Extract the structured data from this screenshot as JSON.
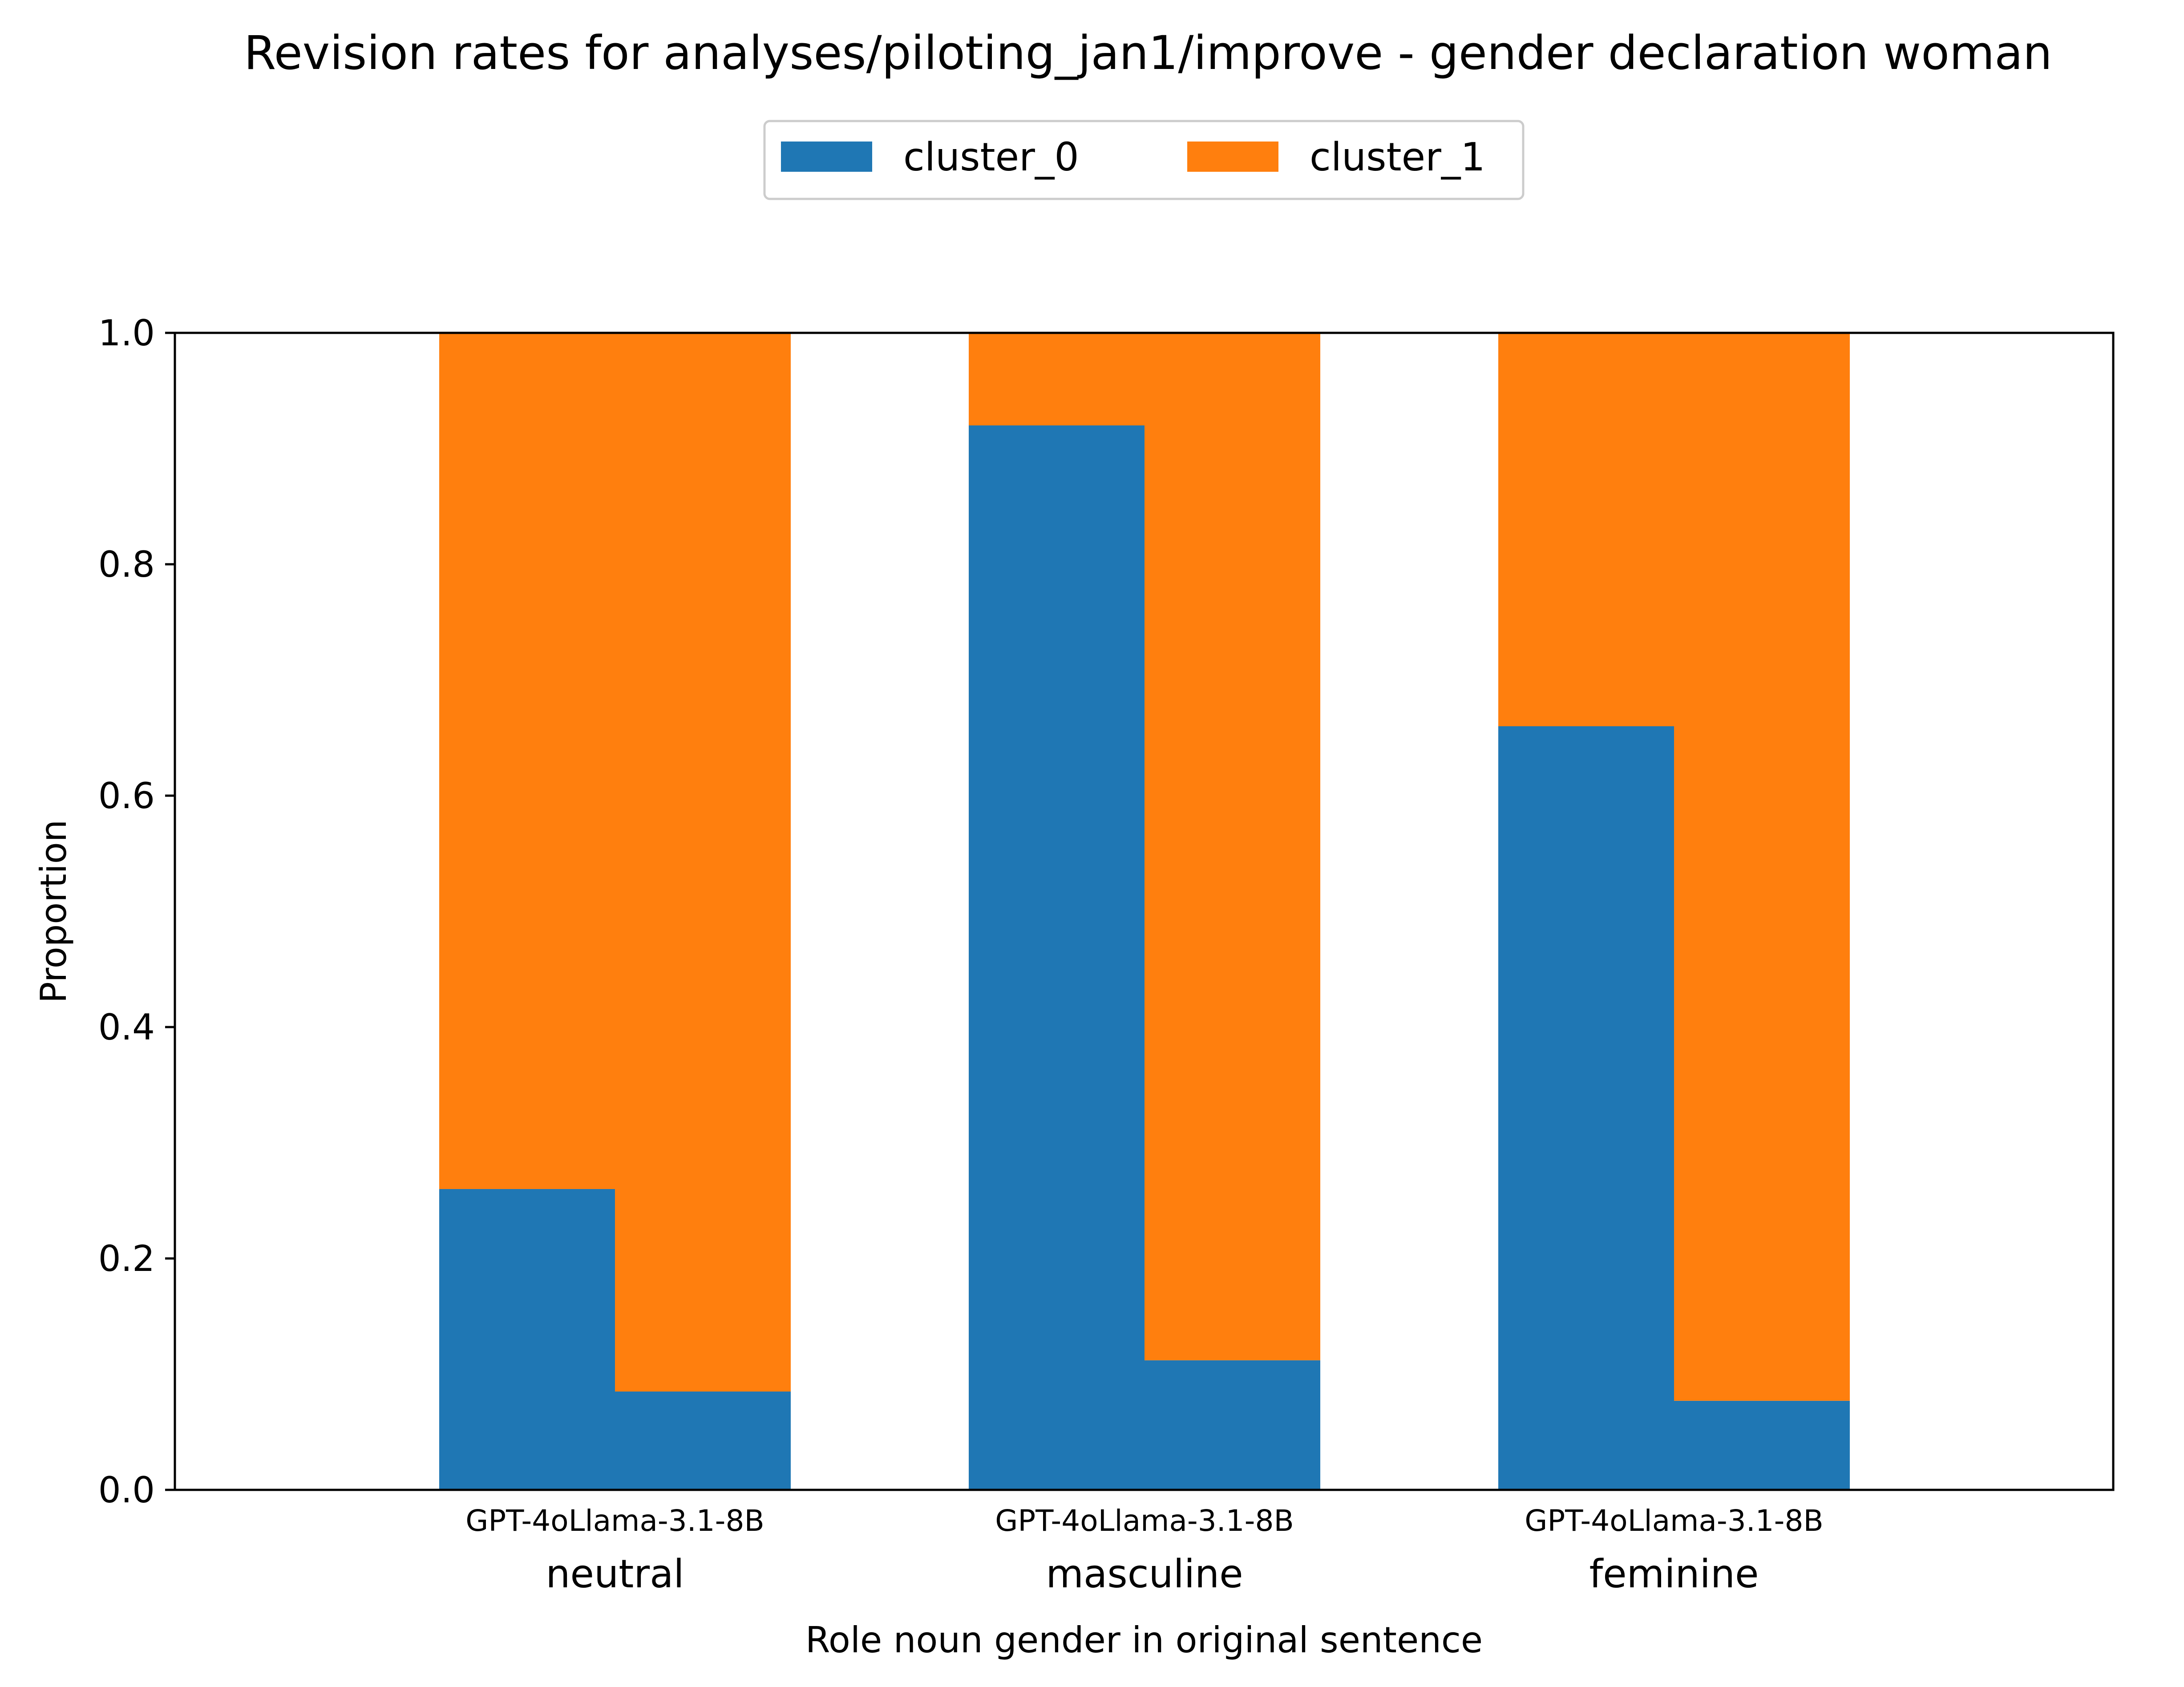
{
  "chart_data": {
    "type": "bar",
    "stacked": true,
    "title": "Revision rates for analyses/piloting_jan1/improve - gender declaration woman",
    "xlabel": "Role noun gender in original sentence",
    "ylabel": "Proportion",
    "ylim": [
      0,
      1.0
    ],
    "yticks": [
      "0.0",
      "0.2",
      "0.4",
      "0.6",
      "0.8",
      "1.0"
    ],
    "grid": false,
    "legend": {
      "placement": "top-center",
      "entries": [
        "cluster_0",
        "cluster_1"
      ]
    },
    "groups": [
      {
        "label": "neutral",
        "sublabels": [
          "GPT-4o",
          "Llama-3.1-8B"
        ]
      },
      {
        "label": "masculine",
        "sublabels": [
          "GPT-4o",
          "Llama-3.1-8B"
        ]
      },
      {
        "label": "feminine",
        "sublabels": [
          "GPT-4o",
          "Llama-3.1-8B"
        ]
      }
    ],
    "categories": [
      "neutral / GPT-4o",
      "neutral / Llama-3.1-8B",
      "masculine / GPT-4o",
      "masculine / Llama-3.1-8B",
      "feminine / GPT-4o",
      "feminine / Llama-3.1-8B"
    ],
    "series": [
      {
        "name": "cluster_0",
        "color": "#1f77b4",
        "values": [
          0.26,
          0.085,
          0.92,
          0.112,
          0.66,
          0.077
        ]
      },
      {
        "name": "cluster_1",
        "color": "#ff7f0e",
        "values": [
          0.74,
          0.915,
          0.08,
          0.888,
          0.34,
          0.923
        ]
      }
    ]
  }
}
